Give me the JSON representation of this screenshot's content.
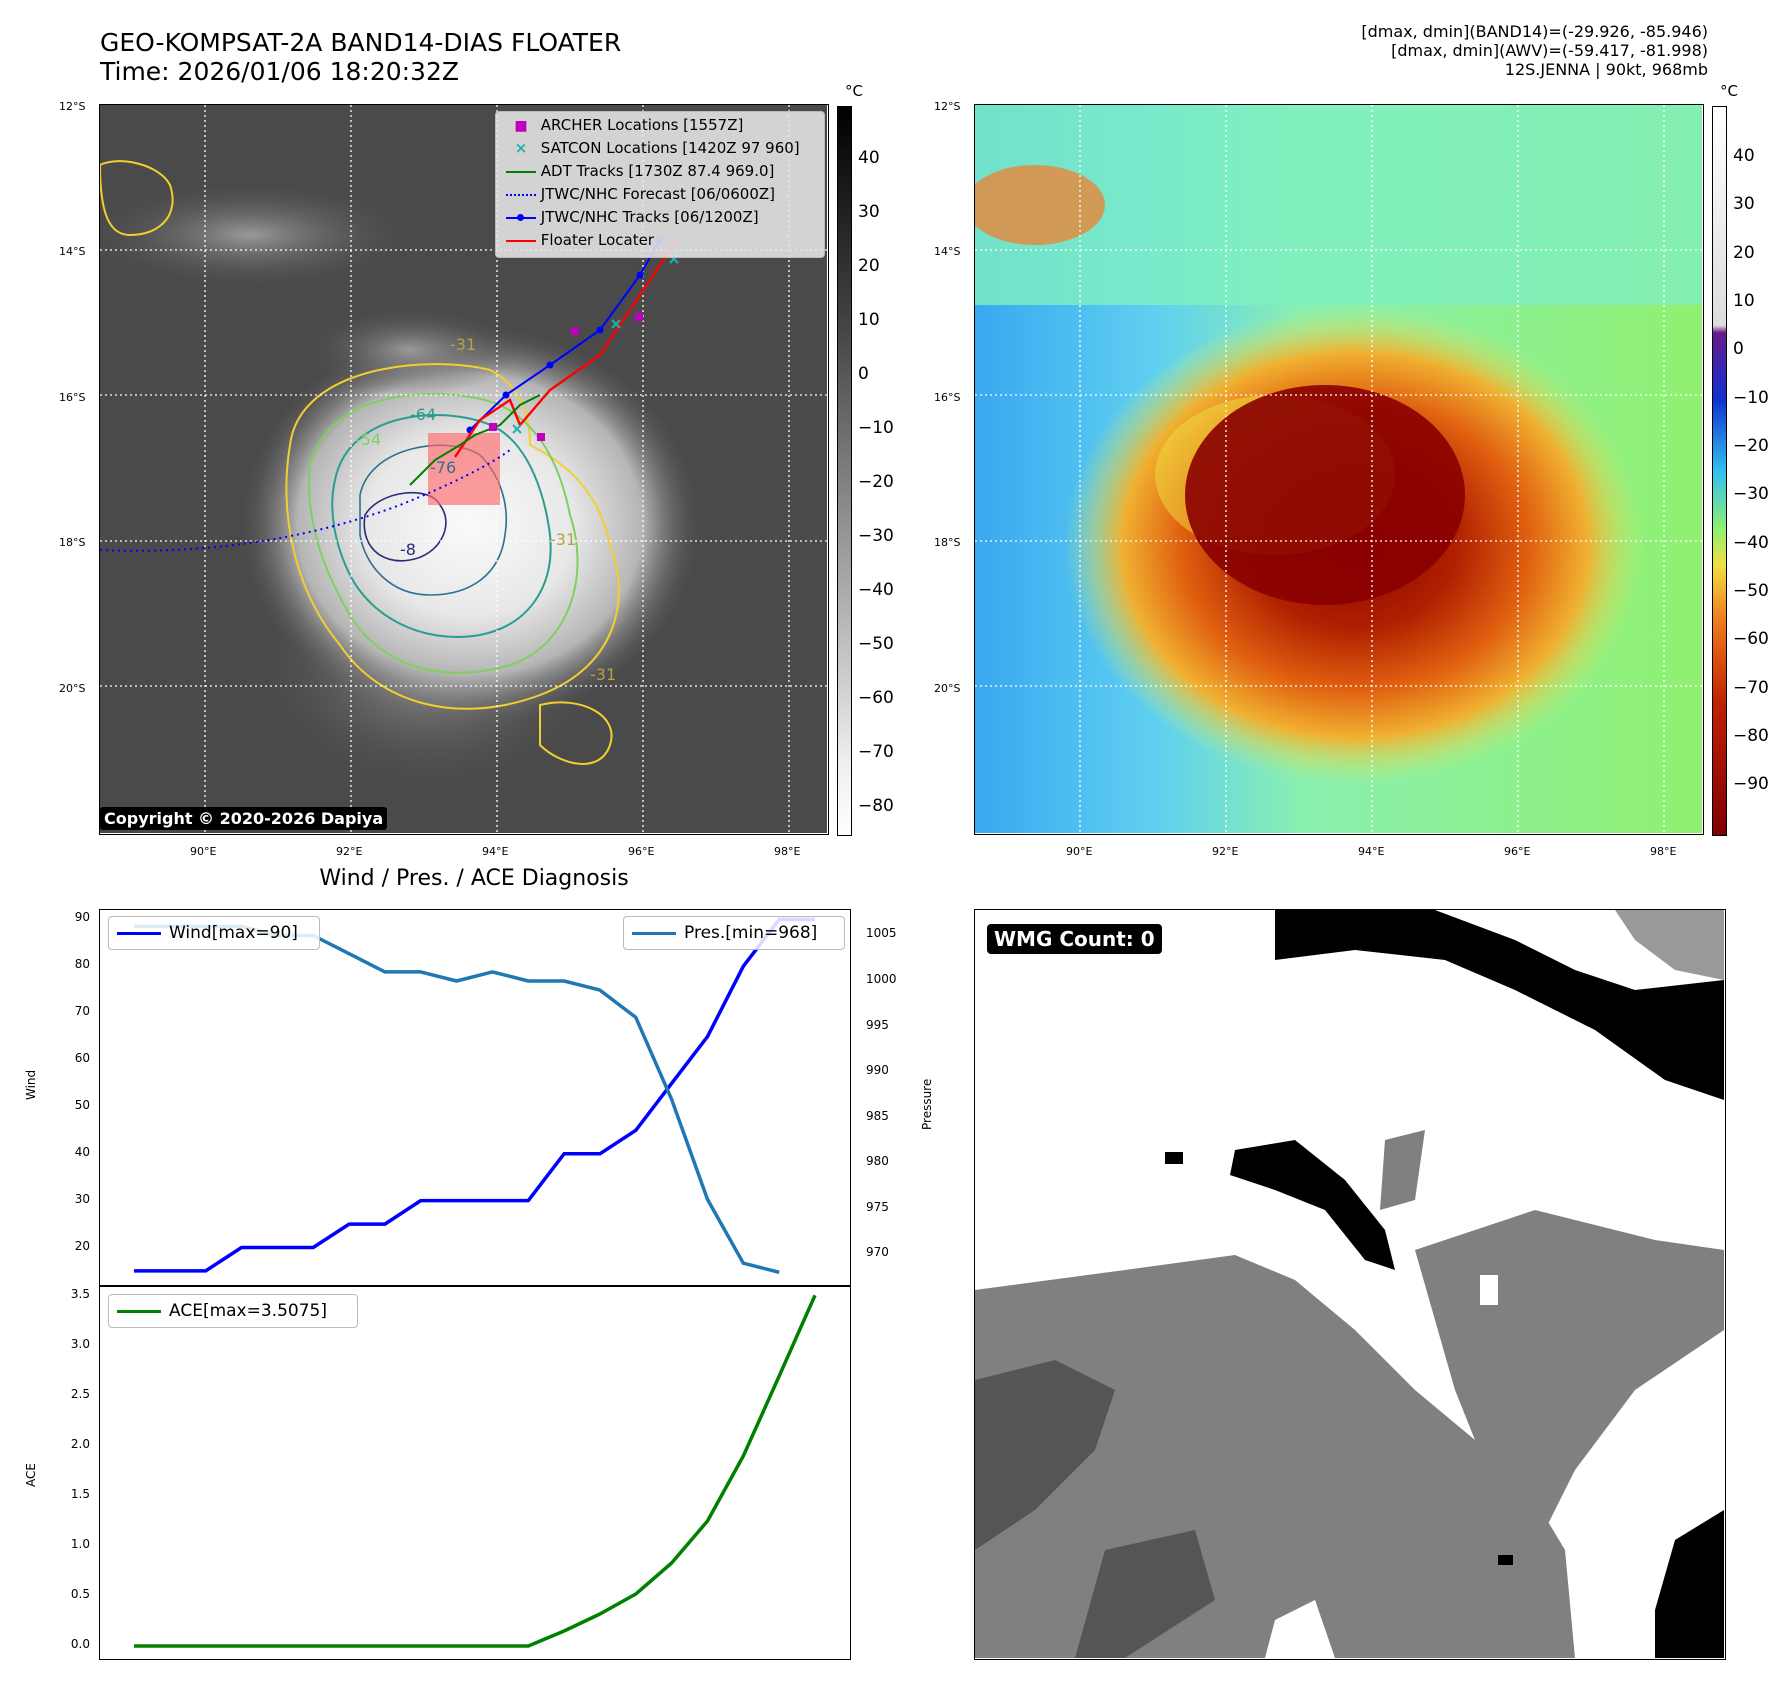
{
  "header": {
    "title_line1": "GEO-KOMPSAT-2A BAND14-DIAS FLOATER",
    "title_line2": "Time: 2026/01/06 18:20:32Z",
    "info_line1": "[dmax, dmin](BAND14)=(-29.926, -85.946)",
    "info_line2": "[dmax, dmin](AWV)=(-59.417, -81.998)",
    "info_line3": "12S.JENNA | 90kt, 968mb"
  },
  "map": {
    "lat_labels": [
      "12°S",
      "14°S",
      "16°S",
      "18°S",
      "20°S"
    ],
    "lon_labels": [
      "90°E",
      "92°E",
      "94°E",
      "96°E",
      "98°E"
    ],
    "copyright": "Copyright © 2020-2026 Dapiya",
    "contour_labels": [
      "-31",
      "-54",
      "-64",
      "-76",
      "-31",
      "-31",
      "-8"
    ],
    "legend": [
      {
        "label": "ARCHER Locations [1557Z]",
        "color": "#c000c0",
        "symbol": "square"
      },
      {
        "label": "SATCON Locations [1420Z 97 960]",
        "color": "#20b2aa",
        "symbol": "x"
      },
      {
        "label": "ADT Tracks [1730Z 87.4 969.0]",
        "color": "#008000",
        "symbol": "line"
      },
      {
        "label": "JTWC/NHC Forecast [06/0600Z]",
        "color": "#0000ff",
        "symbol": "dotted"
      },
      {
        "label": "JTWC/NHC Tracks [06/1200Z]",
        "color": "#0000ff",
        "symbol": "line-dot"
      },
      {
        "label": "Floater Locater",
        "color": "#ff0000",
        "symbol": "line"
      }
    ]
  },
  "colorbar_ir": {
    "unit": "°C",
    "ticks": [
      "40",
      "30",
      "20",
      "10",
      "0",
      "−10",
      "−20",
      "−30",
      "−40",
      "−50",
      "−60",
      "−70",
      "−80"
    ]
  },
  "colorbar_awv": {
    "unit": "°C",
    "ticks": [
      "40",
      "30",
      "20",
      "10",
      "0",
      "−10",
      "−20",
      "−30",
      "−40",
      "−50",
      "−60",
      "−70",
      "−80",
      "−90"
    ]
  },
  "diagnosis": {
    "title": "Wind / Pres. / ACE Diagnosis",
    "wmg_label": "WMG Count: 0"
  },
  "chart_data": [
    {
      "type": "line",
      "title": "Wind / Pres. / ACE Diagnosis",
      "ylabel": "Wind",
      "ylim": [
        12,
        92
      ],
      "yticks": [
        "20",
        "30",
        "40",
        "50",
        "60",
        "70",
        "80",
        "90"
      ],
      "series": [
        {
          "name": "Wind[max=90]",
          "color": "#0000ff",
          "values": [
            15,
            15,
            15,
            20,
            20,
            20,
            25,
            25,
            30,
            30,
            30,
            30,
            40,
            40,
            45,
            55,
            65,
            80,
            90,
            90
          ]
        }
      ]
    },
    {
      "type": "line",
      "ylabel": "Pressure",
      "ylim": [
        966.6,
        1007.8
      ],
      "yticks": [
        "970",
        "975",
        "980",
        "985",
        "990",
        "995",
        "1000",
        "1005"
      ],
      "series": [
        {
          "name": "Pres.[min=968]",
          "color": "#1f77b4",
          "values": [
            1006,
            1006,
            1006,
            1006,
            1005,
            1005,
            1003,
            1001,
            1001,
            1000,
            1001,
            1000,
            1000,
            999,
            996,
            987,
            976,
            969,
            968
          ]
        }
      ]
    },
    {
      "type": "line",
      "ylabel": "ACE",
      "ylim": [
        -0.12,
        3.6
      ],
      "yticks": [
        "0.0",
        "0.5",
        "1.0",
        "1.5",
        "2.0",
        "2.5",
        "3.0",
        "3.5"
      ],
      "series": [
        {
          "name": "ACE[max=3.5075]",
          "color": "#008000",
          "values": [
            0,
            0,
            0,
            0,
            0,
            0,
            0,
            0,
            0,
            0,
            0,
            0,
            0.15,
            0.32,
            0.52,
            0.83,
            1.25,
            1.9,
            2.7,
            3.5075
          ]
        }
      ]
    }
  ]
}
